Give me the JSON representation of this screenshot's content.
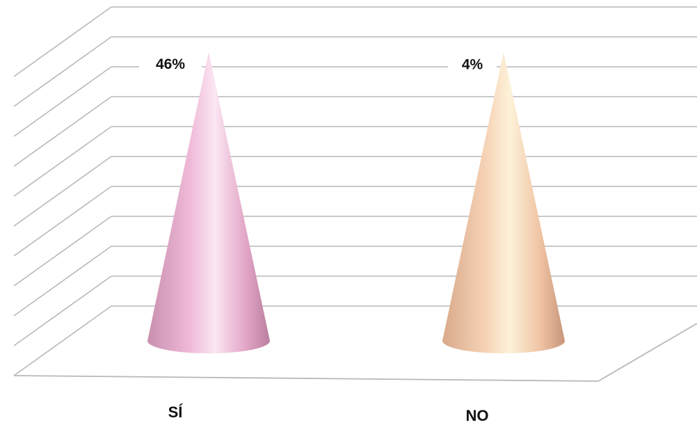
{
  "chart_data": {
    "type": "bar",
    "shape": "cone-3d",
    "categories": [
      "SÍ",
      "NO"
    ],
    "values": [
      46,
      4
    ],
    "data_labels": [
      "46%",
      "4%"
    ],
    "title": "",
    "xlabel": "",
    "ylabel": "",
    "grid": true,
    "legend": "none",
    "colors": [
      "#e8a8cc",
      "#f0c8a0"
    ],
    "gridline_color": "#b8b8b8"
  }
}
